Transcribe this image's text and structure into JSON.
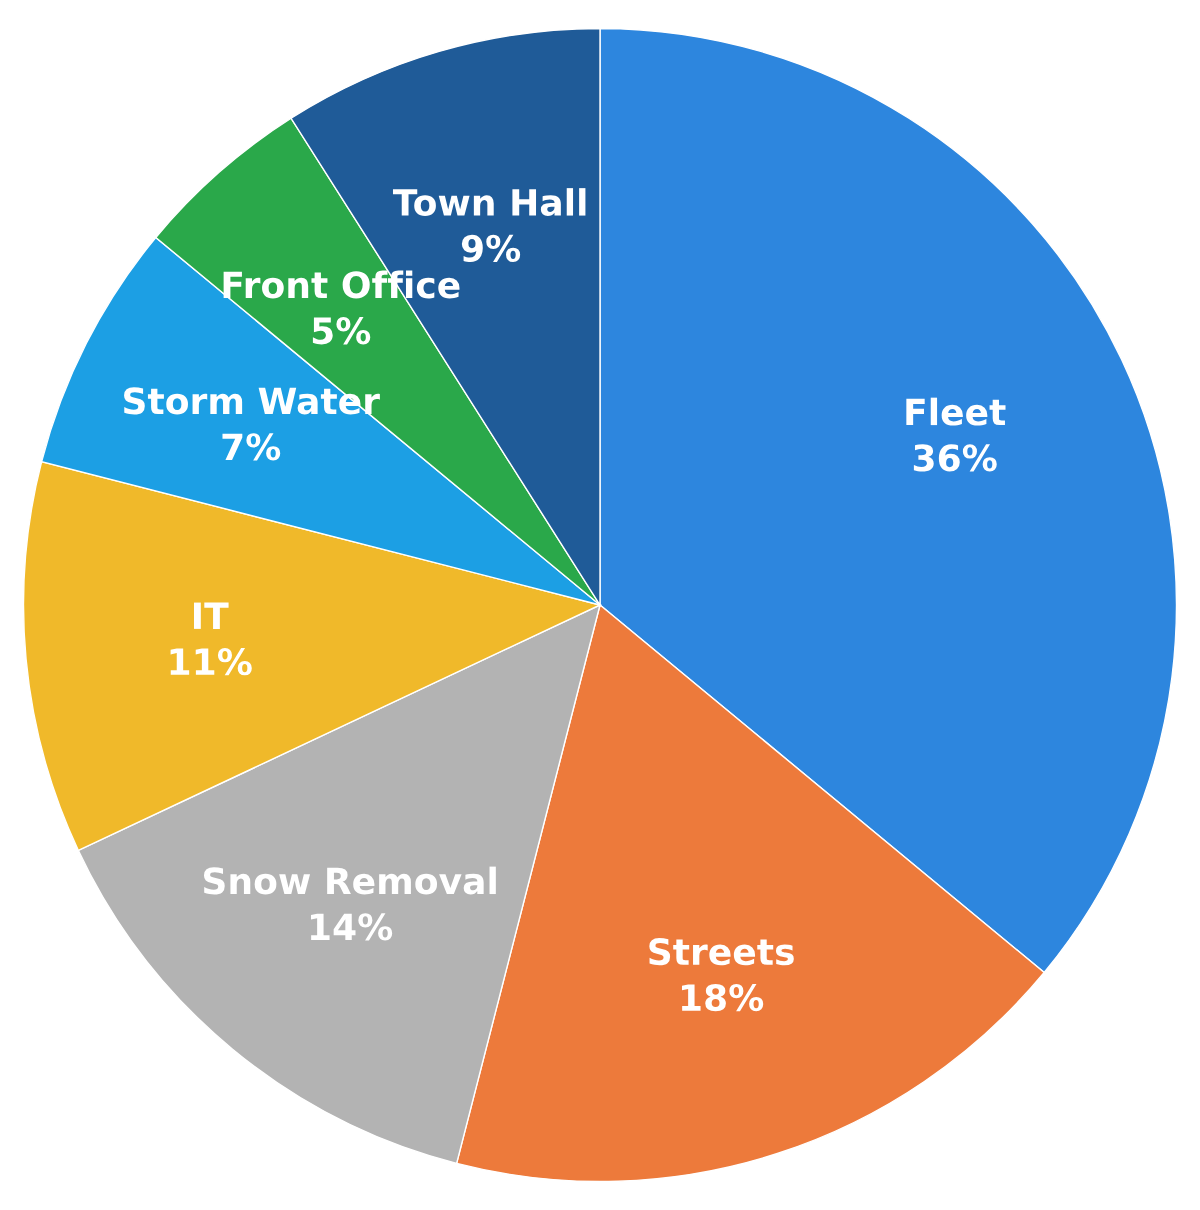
{
  "chart_data": {
    "type": "pie",
    "categories": [
      "Fleet",
      "Streets",
      "Snow Removal",
      "IT",
      "Storm Water",
      "Front Office",
      "Town Hall"
    ],
    "values": [
      36,
      18,
      14,
      11,
      7,
      5,
      9
    ],
    "value_labels": [
      "36%",
      "18%",
      "14%",
      "11%",
      "7%",
      "5%",
      "9%"
    ],
    "colors": [
      "#2d86de",
      "#ed7a3b",
      "#b3b3b3",
      "#f0b92a",
      "#1c9fe4",
      "#2aa84a",
      "#1f5b98"
    ]
  }
}
